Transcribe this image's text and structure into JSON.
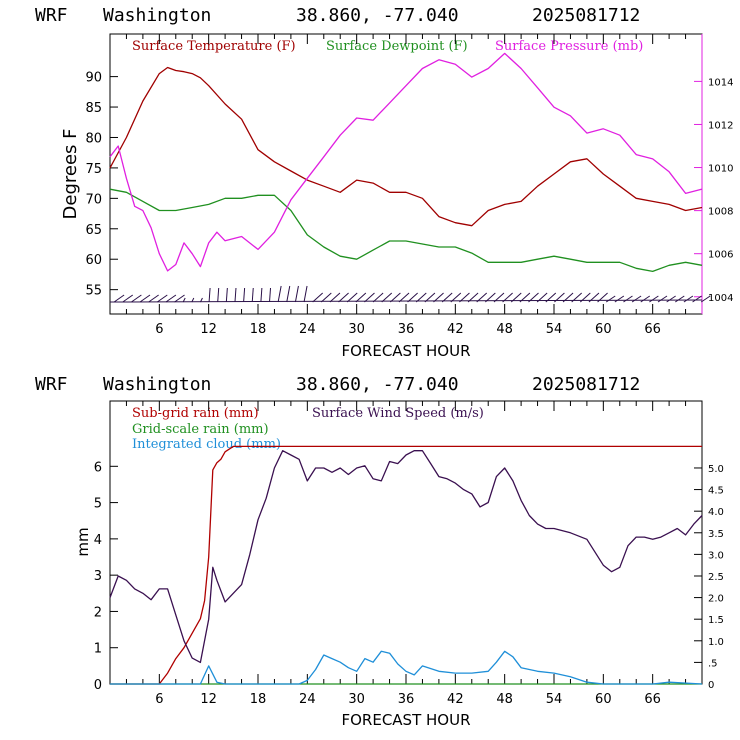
{
  "chart_data": [
    {
      "type": "line",
      "header": {
        "model": "WRF",
        "location": "Washington",
        "coords": "38.860, -77.040",
        "run": "2025081712"
      },
      "xlabel": "FORECAST HOUR",
      "ylabel": "Degrees F",
      "x_ticks": [
        "6",
        "12",
        "18",
        "24",
        "30",
        "36",
        "42",
        "48",
        "54",
        "60",
        "66"
      ],
      "y_ticks": [
        "55",
        "60",
        "65",
        "70",
        "75",
        "80",
        "85",
        "90"
      ],
      "y2_ticks": [
        "1004",
        "1006",
        "1008",
        "1010",
        "1012",
        "1014"
      ],
      "xlim": [
        0,
        72
      ],
      "ylim": [
        51,
        97
      ],
      "y2lim": [
        1003.2,
        1016.2
      ],
      "series": [
        {
          "name": "Surface Temperature (F)",
          "color": "#a00000",
          "axis": "left",
          "x": [
            0,
            2,
            4,
            6,
            7,
            8,
            9,
            10,
            11,
            12,
            14,
            16,
            18,
            20,
            22,
            24,
            26,
            28,
            30,
            32,
            34,
            36,
            38,
            40,
            42,
            44,
            46,
            48,
            50,
            52,
            54,
            56,
            58,
            60,
            62,
            64,
            66,
            68,
            70,
            72
          ],
          "values": [
            75,
            80,
            86,
            90.5,
            91.5,
            91,
            90.8,
            90.5,
            89.8,
            88.5,
            85.5,
            83,
            78,
            76,
            74.5,
            73,
            72,
            71,
            73,
            72.5,
            71,
            71,
            70,
            67,
            66,
            65.5,
            68,
            69,
            69.5,
            72,
            74,
            76,
            76.5,
            74,
            72,
            70,
            69.5,
            69,
            68,
            68.5
          ]
        },
        {
          "name": "Surface Dewpoint (F)",
          "color": "#209020",
          "axis": "left",
          "x": [
            0,
            2,
            4,
            6,
            8,
            10,
            12,
            14,
            16,
            18,
            20,
            22,
            24,
            26,
            28,
            30,
            32,
            34,
            36,
            38,
            40,
            42,
            44,
            46,
            48,
            50,
            52,
            54,
            56,
            58,
            60,
            62,
            64,
            66,
            68,
            70,
            72
          ],
          "values": [
            71.5,
            71,
            69.5,
            68,
            68,
            68.5,
            69,
            70,
            70,
            70.5,
            70.5,
            68,
            64,
            62,
            60.5,
            60,
            61.5,
            63,
            63,
            62.5,
            62,
            62,
            61,
            59.5,
            59.5,
            59.5,
            60,
            60.5,
            60,
            59.5,
            59.5,
            59.5,
            58.5,
            58,
            59,
            59.5,
            59
          ]
        },
        {
          "name": "Surface Pressure (mb)",
          "color": "#e020e0",
          "axis": "right",
          "x": [
            0,
            1,
            2,
            3,
            4,
            5,
            6,
            7,
            8,
            9,
            10,
            11,
            12,
            13,
            14,
            16,
            18,
            20,
            22,
            24,
            26,
            28,
            30,
            32,
            34,
            36,
            38,
            40,
            42,
            44,
            46,
            48,
            50,
            52,
            54,
            56,
            58,
            60,
            62,
            64,
            66,
            68,
            70,
            72
          ],
          "values": [
            1010.5,
            1011,
            1009.5,
            1008.2,
            1008,
            1007.2,
            1006,
            1005.2,
            1005.5,
            1006.5,
            1006,
            1005.4,
            1006.5,
            1007,
            1006.6,
            1006.8,
            1006.2,
            1007,
            1008.5,
            1009.5,
            1010.5,
            1011.5,
            1012.3,
            1012.2,
            1013,
            1013.8,
            1014.6,
            1015,
            1014.8,
            1014.2,
            1014.6,
            1015.3,
            1014.6,
            1013.7,
            1012.8,
            1012.4,
            1011.6,
            1011.8,
            1011.5,
            1010.6,
            1010.4,
            1009.8,
            1008.8,
            1009
          ]
        }
      ]
    },
    {
      "type": "line",
      "header": {
        "model": "WRF",
        "location": "Washington",
        "coords": "38.860, -77.040",
        "run": "2025081712"
      },
      "xlabel": "FORECAST HOUR",
      "ylabel": "mm",
      "x_ticks": [
        "6",
        "12",
        "18",
        "24",
        "30",
        "36",
        "42",
        "48",
        "54",
        "60",
        "66"
      ],
      "y_ticks": [
        "0",
        "1",
        "2",
        "3",
        "4",
        "5",
        "6"
      ],
      "y2_ticks": [
        "0",
        ".5",
        "1.0",
        "1.5",
        "2.0",
        "2.5",
        "3.0",
        "3.5",
        "4.0",
        "4.5",
        "5.0"
      ],
      "xlim": [
        0,
        72
      ],
      "ylim": [
        0,
        7.8
      ],
      "y2lim": [
        0,
        6.55
      ],
      "series": [
        {
          "name": "Sub-grid rain (mm)",
          "color": "#b00000",
          "axis": "left",
          "x": [
            0,
            6,
            7,
            8,
            9,
            10,
            11,
            11.5,
            12,
            12.5,
            13,
            13.5,
            14,
            15,
            72
          ],
          "values": [
            0,
            0,
            0.3,
            0.7,
            1.0,
            1.4,
            1.8,
            2.3,
            3.5,
            5.9,
            6.1,
            6.2,
            6.4,
            6.55,
            6.55
          ]
        },
        {
          "name": "Grid-scale rain (mm)",
          "color": "#209020",
          "axis": "left",
          "x": [
            0,
            72
          ],
          "values": [
            0,
            0
          ]
        },
        {
          "name": "Integrated cloud (mm)",
          "color": "#1f8fd8",
          "axis": "left",
          "x": [
            0,
            11,
            12,
            13,
            14,
            20,
            23,
            24,
            25,
            26,
            27,
            28,
            29,
            30,
            31,
            32,
            33,
            34,
            35,
            36,
            37,
            38,
            40,
            42,
            44,
            46,
            47,
            48,
            49,
            50,
            52,
            54,
            56,
            58,
            60,
            66,
            68,
            72
          ],
          "values": [
            0,
            0,
            0.5,
            0.05,
            0,
            0,
            0,
            0.1,
            0.4,
            0.8,
            0.7,
            0.6,
            0.45,
            0.35,
            0.7,
            0.6,
            0.9,
            0.85,
            0.55,
            0.35,
            0.25,
            0.5,
            0.35,
            0.3,
            0.3,
            0.35,
            0.6,
            0.9,
            0.75,
            0.45,
            0.35,
            0.3,
            0.2,
            0.05,
            0,
            0,
            0.05,
            0
          ]
        },
        {
          "name": "Surface Wind Speed (m/s)",
          "color": "#3a1050",
          "axis": "right",
          "x": [
            0,
            1,
            2,
            3,
            4,
            5,
            6,
            7,
            8,
            9,
            10,
            11,
            12,
            12.5,
            13,
            14,
            15,
            16,
            17,
            18,
            19,
            20,
            21,
            22,
            23,
            24,
            25,
            26,
            27,
            28,
            29,
            30,
            31,
            32,
            33,
            34,
            35,
            36,
            37,
            38,
            39,
            40,
            41,
            42,
            43,
            44,
            45,
            46,
            47,
            48,
            49,
            50,
            51,
            52,
            53,
            54,
            56,
            58,
            60,
            61,
            62,
            63,
            64,
            65,
            66,
            67,
            68,
            69,
            70,
            71,
            72
          ],
          "values": [
            2.0,
            2.5,
            2.4,
            2.2,
            2.1,
            1.95,
            2.2,
            2.2,
            1.6,
            1.0,
            0.6,
            0.5,
            1.5,
            2.7,
            2.4,
            1.9,
            2.1,
            2.3,
            3.0,
            3.8,
            4.3,
            5.0,
            5.4,
            5.3,
            5.2,
            4.7,
            5.0,
            5.0,
            4.9,
            5.0,
            4.85,
            5.0,
            5.05,
            4.75,
            4.7,
            5.15,
            5.1,
            5.3,
            5.4,
            5.4,
            5.1,
            4.8,
            4.75,
            4.65,
            4.5,
            4.4,
            4.1,
            4.2,
            4.8,
            5.0,
            4.7,
            4.25,
            3.9,
            3.7,
            3.6,
            3.6,
            3.5,
            3.35,
            2.75,
            2.6,
            2.7,
            3.2,
            3.4,
            3.4,
            3.35,
            3.4,
            3.5,
            3.6,
            3.45,
            3.7,
            3.9
          ]
        }
      ]
    }
  ]
}
